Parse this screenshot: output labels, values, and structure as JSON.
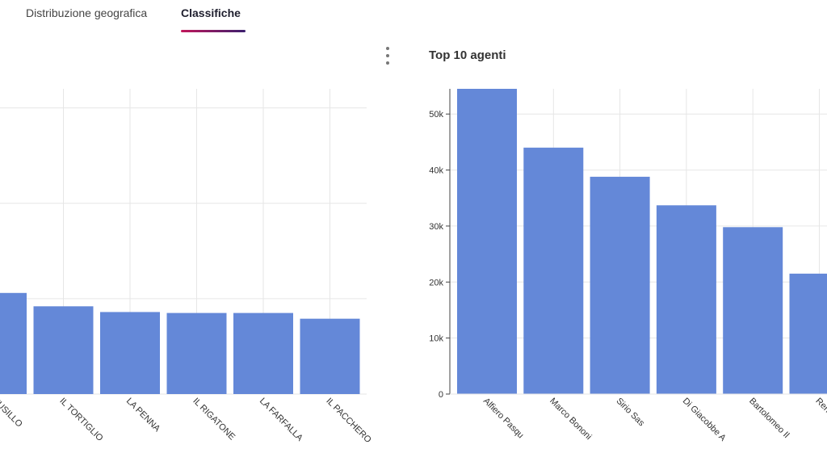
{
  "tabs": [
    {
      "label": "Distribuzione geografica",
      "active": false
    },
    {
      "label": "Classifiche",
      "active": true
    }
  ],
  "colors": {
    "bar": "#6488d8",
    "grid": "#e6e6e6",
    "axis": "#444444",
    "tab_underline_start": "#c2185b",
    "tab_underline_end": "#3b1f6e"
  },
  "menu_icon": "kebab-vertical-icon",
  "chart_data": [
    {
      "type": "bar",
      "title": "",
      "categories": [
        "FUSILLO",
        "IL TORTIGLIO",
        "LA PENNA",
        "IL RIGATONE",
        "LA FARFALLA",
        "IL PACCHERO"
      ],
      "values": [
        53,
        46,
        43,
        42.5,
        42.5,
        39.5
      ],
      "ylim": [
        0,
        160
      ],
      "grid": true
    },
    {
      "type": "bar",
      "title": "Top 10 agenti",
      "categories": [
        "Alfiero Pasqu",
        "Marco Bononi",
        "Sirio Sas",
        "Di Giacobbe A",
        "Bartolomeo Il",
        "Rena"
      ],
      "values": [
        54500,
        44000,
        38800,
        33700,
        29800,
        21500
      ],
      "yticks": [
        0,
        10000,
        20000,
        30000,
        40000,
        50000
      ],
      "ytick_labels": [
        "0",
        "10k",
        "20k",
        "30k",
        "40k",
        "50k"
      ],
      "ylim": [
        0,
        54500
      ],
      "grid": true
    }
  ]
}
